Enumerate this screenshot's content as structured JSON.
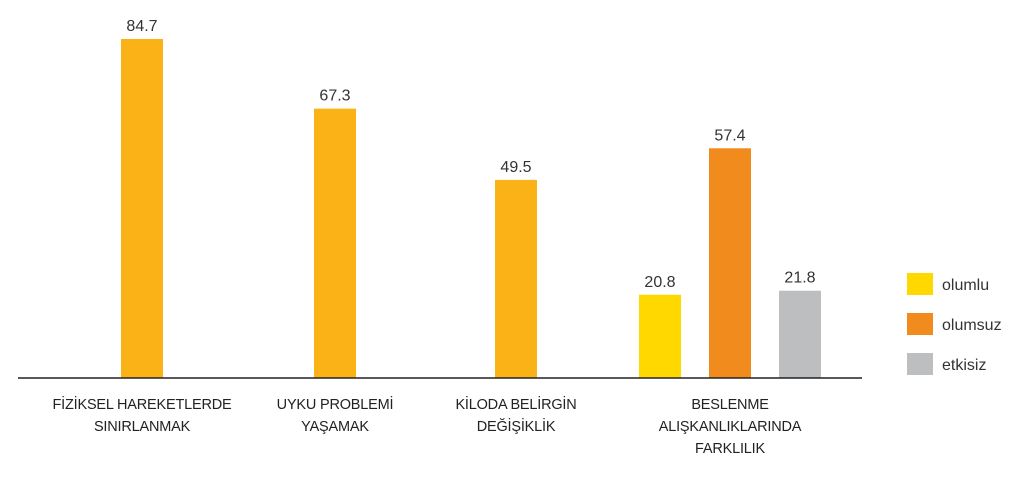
{
  "chart_data": {
    "type": "bar",
    "categories": [
      "FİZİKSEL HAREKETLERDE\nSINIRLANMAK",
      "UYKU PROBLEMİ\nYAŞAMAK",
      "KİLODA BELİRGİN\nDEĞİŞİKLİK",
      "BESLENME\nALIŞKANLIKLARINDA\nFARKLILIK"
    ],
    "series": [
      {
        "color": "#fbb216",
        "values": [
          84.7,
          67.3,
          49.5,
          null
        ]
      },
      {
        "name": "olumlu",
        "color": "#ffd800",
        "values": [
          null,
          null,
          null,
          20.8
        ]
      },
      {
        "name": "olumsuz",
        "color": "#f28b1e",
        "values": [
          null,
          null,
          null,
          57.4
        ]
      },
      {
        "name": "etkisiz",
        "color": "#bdbec0",
        "values": [
          null,
          null,
          null,
          21.8
        ]
      }
    ],
    "legend": "right"
  }
}
